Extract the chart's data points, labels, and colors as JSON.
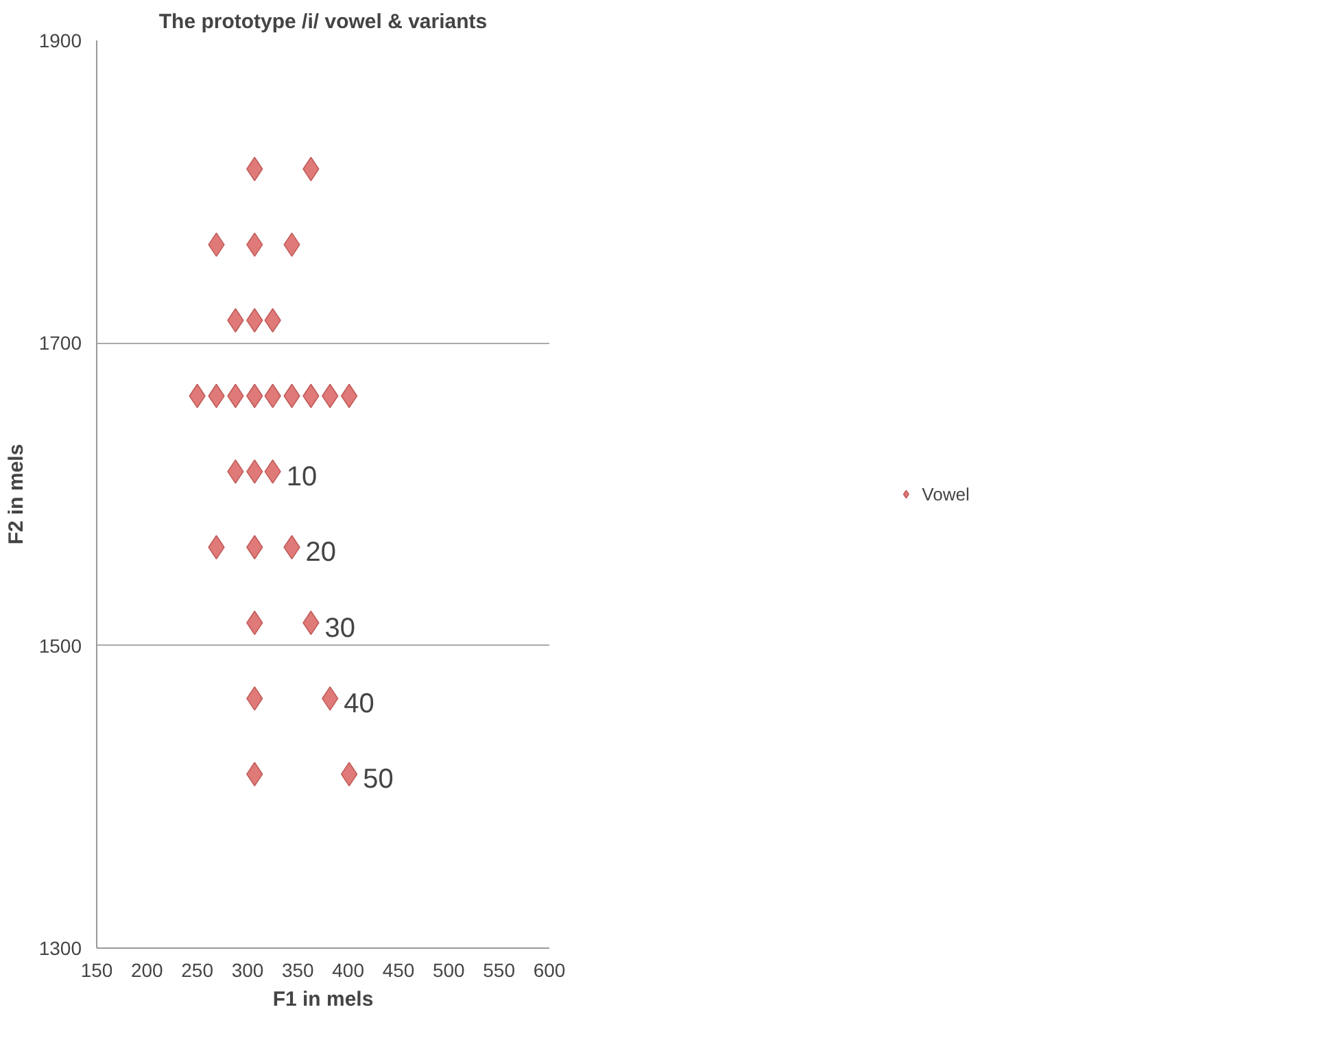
{
  "chart_data": {
    "type": "scatter",
    "title": "The prototype /i/ vowel & variants",
    "xlabel": "F1 in mels",
    "ylabel": "F2 in mels",
    "xlim": [
      150,
      600
    ],
    "xticks": [
      150,
      200,
      250,
      300,
      350,
      400,
      450,
      500,
      550,
      600
    ],
    "ylim": [
      1300,
      1900
    ],
    "yticks": [
      1300,
      1500,
      1700,
      1900
    ],
    "grid": "y",
    "legend": "right",
    "marker": "diamond",
    "series": [
      {
        "name": "Vowel",
        "color": "#e07a78",
        "x": [
          307,
          363,
          269,
          307,
          344,
          288,
          307,
          325,
          250,
          269,
          288,
          307,
          325,
          344,
          363,
          382,
          401,
          288,
          307,
          325,
          269,
          307,
          344,
          307,
          363,
          307,
          382,
          307,
          401
        ],
        "values": [
          1815,
          1815,
          1765,
          1765,
          1765,
          1715,
          1715,
          1715,
          1665,
          1665,
          1665,
          1665,
          1665,
          1665,
          1665,
          1665,
          1665,
          1615,
          1615,
          1615,
          1565,
          1565,
          1565,
          1515,
          1515,
          1465,
          1465,
          1415,
          1415
        ]
      }
    ],
    "annotations": [
      {
        "text": "10",
        "x": 325,
        "y": 1615
      },
      {
        "text": "20",
        "x": 344,
        "y": 1565
      },
      {
        "text": "30",
        "x": 363,
        "y": 1515
      },
      {
        "text": "40",
        "x": 382,
        "y": 1465
      },
      {
        "text": "50",
        "x": 401,
        "y": 1415
      }
    ]
  }
}
